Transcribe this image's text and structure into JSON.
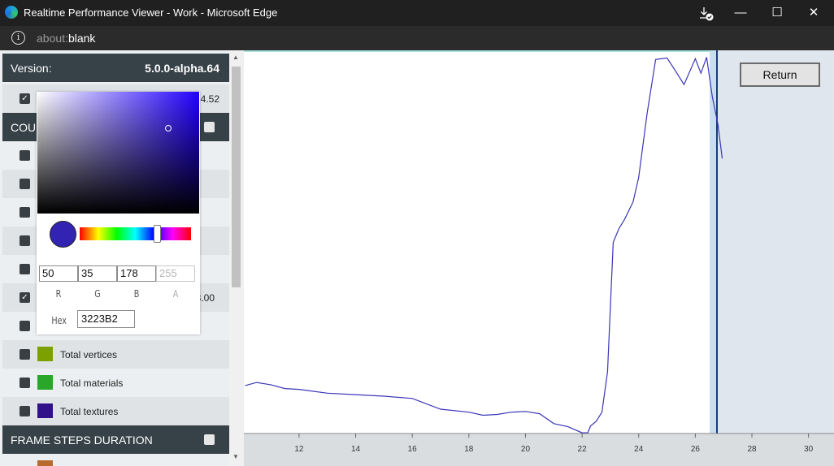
{
  "window": {
    "title": "Realtime Performance Viewer - Work - Microsoft Edge",
    "download_icon": "download-icon",
    "minimize": "—",
    "maximize": "☐",
    "close": "✕"
  },
  "address": {
    "protocol": "about:",
    "host": "blank"
  },
  "sidebar": {
    "version_label": "Version:",
    "version_value": "5.0.0-alpha.64",
    "partial_value_1": "24.52",
    "counts_header_partial": "COUI",
    "partial_value_2": "3.00",
    "items": [
      {
        "label": "Total vertices",
        "color": "#7ca000",
        "checked": false
      },
      {
        "label": "Total materials",
        "color": "#2aa62a",
        "checked": false
      },
      {
        "label": "Total textures",
        "color": "#32108a",
        "checked": false
      }
    ],
    "frame_steps_header": "FRAME STEPS DURATION",
    "next_swatch_color": "#b86b2e"
  },
  "color_picker": {
    "r": "50",
    "g": "35",
    "b": "178",
    "a": "255",
    "r_label": "R",
    "g_label": "G",
    "b_label": "B",
    "a_label": "A",
    "hex_label": "Hex",
    "hex_value": "3223B2",
    "preview_color": "#3223b2"
  },
  "return_label": "Return",
  "chart_data": {
    "type": "line",
    "x_ticks": [
      "12",
      "14",
      "16",
      "18",
      "20",
      "22",
      "24",
      "26",
      "28",
      "30"
    ],
    "series_color": "#3a35b8",
    "x": [
      10.1,
      10.5,
      11,
      11.5,
      12,
      13,
      14,
      15,
      16,
      17,
      18,
      18.5,
      19,
      19.5,
      20,
      20.5,
      21,
      21.5,
      22,
      22.2,
      22.3,
      22.5,
      22.7,
      22.9,
      23.1,
      23.3,
      23.5,
      23.8,
      24,
      24.3,
      24.6,
      25,
      25.3,
      25.6,
      26,
      26.2,
      26.4,
      26.6,
      26.8,
      26.95
    ],
    "y": [
      2.2,
      2.6,
      2.3,
      1.8,
      1.7,
      1.2,
      1.0,
      0.8,
      0.5,
      -0.9,
      -1.3,
      -1.7,
      -1.6,
      -1.3,
      -1.2,
      -1.5,
      -2.8,
      -3.2,
      -4.0,
      -4.0,
      -3.1,
      -2.5,
      -1.3,
      4.0,
      21.0,
      22.8,
      24.0,
      26.3,
      29.5,
      38.0,
      45.0,
      45.2,
      43.5,
      41.7,
      45.1,
      43.2,
      45.3,
      40.1,
      36.5,
      32.0
    ],
    "xlim": [
      10.05,
      30.9
    ],
    "ylim": [
      -4.1,
      46.2
    ]
  }
}
